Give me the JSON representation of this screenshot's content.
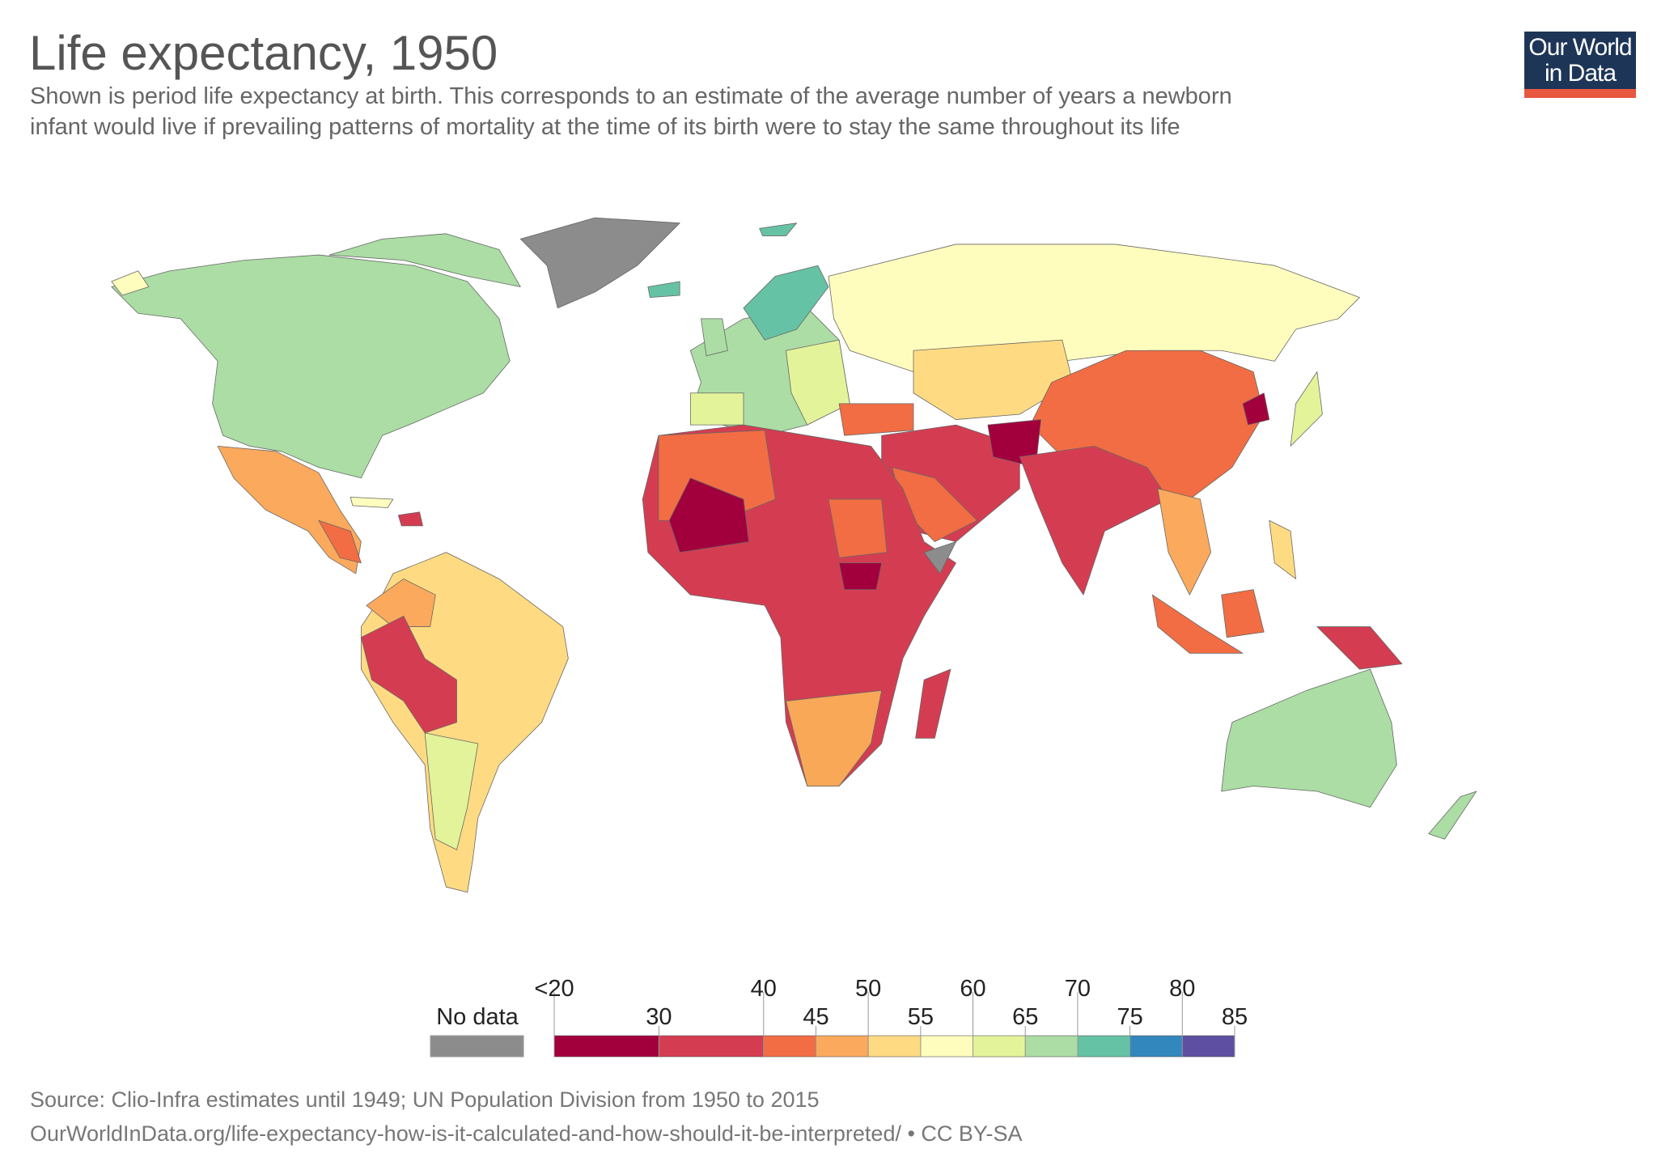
{
  "chart_data": {
    "type": "map",
    "title": "Life expectancy, 1950",
    "subtitle": [
      "Shown is period life expectancy at birth. This corresponds to an estimate of the average number of years a newborn",
      "infant would live if prevailing patterns of mortality at the time of its birth were to stay the same throughout its life"
    ],
    "logo": [
      "Our World",
      "in Data"
    ],
    "legend": {
      "no_data_label": "No data",
      "no_data_color": "#8c8c8c",
      "bins": [
        20,
        30,
        40,
        45,
        50,
        55,
        60,
        65,
        70,
        75,
        80,
        85
      ],
      "colors": [
        "#a2003c",
        "#d43d51",
        "#f26d43",
        "#fba95c",
        "#fedb83",
        "#fffdbd",
        "#e3f39a",
        "#abdda4",
        "#66c2a5",
        "#3288bd",
        "#5e4fa2"
      ],
      "ticks": [
        {
          "value": 20,
          "label": "<20"
        },
        30,
        40,
        45,
        50,
        55,
        60,
        65,
        70,
        75,
        80,
        85
      ]
    },
    "source": "Source: Clio-Infra estimates until 1949; UN Population Division from 1950 to 2015",
    "url_line": "OurWorldInData.org/life-expectancy-how-is-it-calculated-and-how-should-it-be-interpreted/ • CC BY-SA"
  }
}
